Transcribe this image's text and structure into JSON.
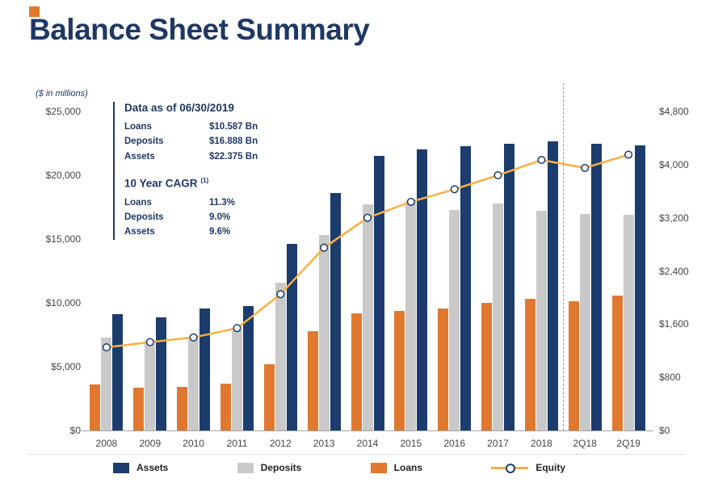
{
  "page": {
    "title": "Balance Sheet Summary",
    "units_note": "($ in millions)"
  },
  "annotation": {
    "data_as_of": {
      "heading": "Data as of 06/30/2019",
      "rows": [
        {
          "label": "Loans",
          "value": "$10.587 Bn"
        },
        {
          "label": "Deposits",
          "value": "$16.888 Bn"
        },
        {
          "label": "Assets",
          "value": "$22.375 Bn"
        }
      ]
    },
    "cagr": {
      "heading": "10 Year CAGR",
      "superscript": "(1)",
      "rows": [
        {
          "label": "Loans",
          "value": "11.3%"
        },
        {
          "label": "Deposits",
          "value": "9.0%"
        },
        {
          "label": "Assets",
          "value": "9.6%"
        }
      ]
    }
  },
  "legend": [
    {
      "label": "Assets",
      "color": "#1b3c6d",
      "type": "square"
    },
    {
      "label": "Deposits",
      "color": "#c9c9c9",
      "type": "square"
    },
    {
      "label": "Loans",
      "color": "#e0792f",
      "type": "square"
    },
    {
      "label": "Equity",
      "color": "#fbb040",
      "type": "line-marker"
    }
  ],
  "chart_data": {
    "type": "bar",
    "title": "Balance Sheet Summary",
    "categories": [
      "2008",
      "2009",
      "2010",
      "2011",
      "2012",
      "2013",
      "2014",
      "2015",
      "2016",
      "2017",
      "2018",
      "2Q18",
      "2Q19"
    ],
    "series": [
      {
        "name": "Assets",
        "type": "bar",
        "axis": "left",
        "color": "#1b3c6d",
        "values": [
          9100,
          8850,
          9550,
          9750,
          14600,
          18600,
          21500,
          22000,
          22250,
          22500,
          22650,
          22500,
          22375
        ]
      },
      {
        "name": "Deposits",
        "type": "bar",
        "axis": "left",
        "color": "#c9c9c9",
        "values": [
          7300,
          7100,
          7200,
          7900,
          11600,
          15300,
          17700,
          18000,
          17300,
          17800,
          17200,
          16950,
          16888
        ]
      },
      {
        "name": "Loans",
        "type": "bar",
        "axis": "left",
        "color": "#e0792f",
        "values": [
          3600,
          3350,
          3450,
          3650,
          5200,
          7800,
          9200,
          9400,
          9550,
          10000,
          10300,
          10150,
          10587
        ]
      },
      {
        "name": "Equity",
        "type": "line",
        "axis": "right",
        "color": "#fbb040",
        "values": [
          1250,
          1330,
          1400,
          1540,
          2050,
          2750,
          3200,
          3440,
          3630,
          3840,
          4070,
          3950,
          4150
        ]
      }
    ],
    "bar_order": [
      "Loans",
      "Deposits",
      "Assets"
    ],
    "left_axis": {
      "min": 0,
      "max": 25000,
      "step": 5000,
      "tick_labels": [
        "$0",
        "$5,000",
        "$10,000",
        "$15,000",
        "$20,000",
        "$25,000"
      ]
    },
    "right_axis": {
      "min": 0,
      "max": 4800,
      "step": 800,
      "tick_labels": [
        "$0",
        "$800",
        "$1,600",
        "$2,400",
        "$3,200",
        "$4,000",
        "$4,800"
      ]
    },
    "separator_after_category": "2018",
    "grid": false,
    "legend_position": "bottom"
  }
}
